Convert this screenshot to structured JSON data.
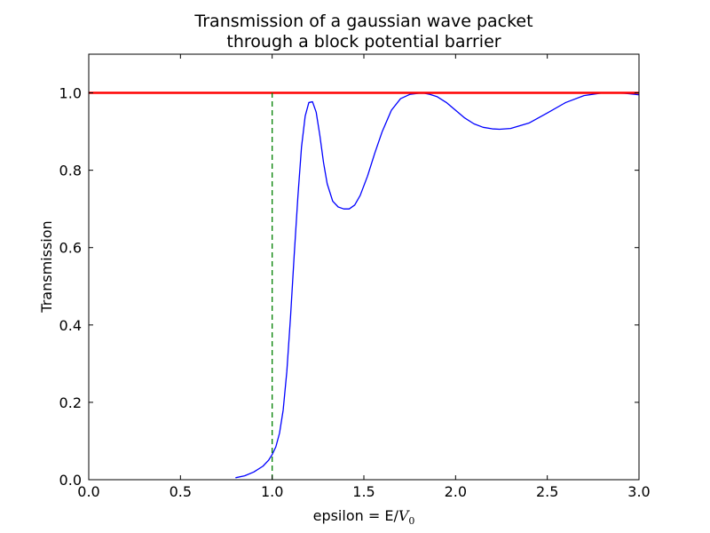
{
  "chart_data": {
    "type": "line",
    "title_lines": [
      "Transmission of a gaussian wave packet",
      "through a block potential barrier"
    ],
    "xlabel_prefix": "epsilon = E/",
    "xlabel_var": "V",
    "xlabel_sub": "0",
    "ylabel": "Transmission",
    "xlim": [
      0.0,
      3.0
    ],
    "ylim": [
      0.0,
      1.1
    ],
    "xticks": [
      0.0,
      0.5,
      1.0,
      1.5,
      2.0,
      2.5,
      3.0
    ],
    "yticks": [
      0.0,
      0.2,
      0.4,
      0.6,
      0.8,
      1.0
    ],
    "xtick_labels": [
      "0.0",
      "0.5",
      "1.0",
      "1.5",
      "2.0",
      "2.5",
      "3.0"
    ],
    "ytick_labels": [
      "0.0",
      "0.2",
      "0.4",
      "0.6",
      "0.8",
      "1.0"
    ],
    "grid": false,
    "series": [
      {
        "color": "#0000ff",
        "style": "solid",
        "x": [
          0.8,
          0.85,
          0.9,
          0.95,
          0.98,
          1.0,
          1.02,
          1.04,
          1.06,
          1.08,
          1.1,
          1.12,
          1.14,
          1.16,
          1.18,
          1.2,
          1.22,
          1.24,
          1.26,
          1.28,
          1.3,
          1.33,
          1.36,
          1.39,
          1.42,
          1.45,
          1.48,
          1.52,
          1.56,
          1.6,
          1.65,
          1.7,
          1.75,
          1.8,
          1.83,
          1.86,
          1.9,
          1.95,
          2.0,
          2.05,
          2.1,
          2.15,
          2.2,
          2.24,
          2.3,
          2.4,
          2.5,
          2.6,
          2.7,
          2.8,
          2.86,
          2.92,
          2.98,
          3.0
        ],
        "y": [
          0.005,
          0.01,
          0.02,
          0.035,
          0.05,
          0.065,
          0.085,
          0.12,
          0.18,
          0.28,
          0.42,
          0.58,
          0.73,
          0.86,
          0.94,
          0.975,
          0.977,
          0.95,
          0.89,
          0.82,
          0.765,
          0.72,
          0.705,
          0.7,
          0.7,
          0.71,
          0.735,
          0.785,
          0.845,
          0.9,
          0.955,
          0.985,
          0.996,
          0.999,
          0.999,
          0.996,
          0.99,
          0.975,
          0.955,
          0.935,
          0.92,
          0.911,
          0.907,
          0.906,
          0.908,
          0.922,
          0.948,
          0.975,
          0.993,
          1.0,
          1.0,
          0.999,
          0.996,
          0.995
        ]
      },
      {
        "color": "#ff0000",
        "style": "solid",
        "x": [
          0.0,
          3.0
        ],
        "y": [
          1.0,
          1.0
        ]
      },
      {
        "color": "#008000",
        "style": "dashed",
        "x": [
          1.0,
          1.0
        ],
        "y": [
          0.0,
          1.0
        ]
      }
    ]
  }
}
